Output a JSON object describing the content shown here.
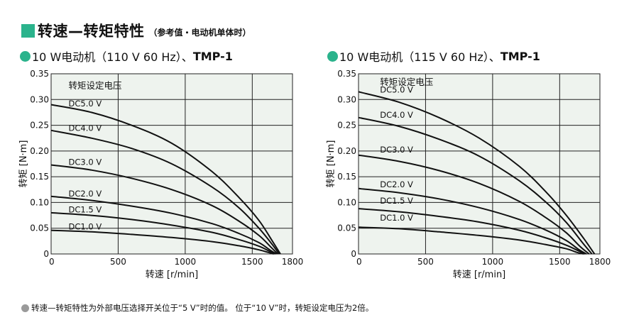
{
  "header": {
    "title": "转速—转矩特性",
    "subtitle": "（参考值・电动机单体时）"
  },
  "colors": {
    "accent": "#2bb38c",
    "plot_bg": "#eef3ee",
    "grid": "#222222",
    "curve": "#111111",
    "note_dot": "#9a9a9a"
  },
  "footnote": "转速—转矩特性为外部电压选择开关位于“5 V”时的值。 位于“10 V”时，转矩设定电压为2倍。",
  "chart_data": [
    {
      "type": "line",
      "title_prefix": "10 W电动机（110 V 60 Hz）、",
      "title_model": "TMP-1",
      "xlabel": "转速 [r/min]",
      "ylabel": "转矩 [N·m]",
      "xlim": [
        0,
        1800
      ],
      "ylim": [
        0,
        0.35
      ],
      "xticks": [
        "0",
        "500",
        "1000",
        "1500",
        "1800"
      ],
      "yticks": [
        "0",
        "0.05",
        "0.10",
        "0.15",
        "0.20",
        "0.25",
        "0.30",
        "0.35"
      ],
      "grid": true,
      "annotation": "转矩设定电压",
      "series": [
        {
          "name": "DC5.0 V",
          "x": [
            0,
            300,
            600,
            900,
            1200,
            1400,
            1550,
            1650,
            1710
          ],
          "y": [
            0.29,
            0.275,
            0.25,
            0.215,
            0.16,
            0.11,
            0.065,
            0.025,
            0
          ]
        },
        {
          "name": "DC4.0 V",
          "x": [
            0,
            300,
            600,
            900,
            1200,
            1400,
            1550,
            1650,
            1700
          ],
          "y": [
            0.24,
            0.225,
            0.205,
            0.175,
            0.13,
            0.09,
            0.05,
            0.018,
            0
          ]
        },
        {
          "name": "DC3.0 V",
          "x": [
            0,
            300,
            600,
            900,
            1200,
            1400,
            1550,
            1640,
            1690
          ],
          "y": [
            0.173,
            0.163,
            0.147,
            0.125,
            0.094,
            0.064,
            0.036,
            0.013,
            0
          ]
        },
        {
          "name": "DC2.0 V",
          "x": [
            0,
            300,
            600,
            900,
            1200,
            1400,
            1550,
            1630,
            1680
          ],
          "y": [
            0.112,
            0.104,
            0.093,
            0.079,
            0.059,
            0.04,
            0.022,
            0.008,
            0
          ]
        },
        {
          "name": "DC1.5 V",
          "x": [
            0,
            300,
            600,
            900,
            1200,
            1400,
            1550,
            1630,
            1670
          ],
          "y": [
            0.08,
            0.075,
            0.067,
            0.056,
            0.042,
            0.028,
            0.015,
            0.005,
            0
          ]
        },
        {
          "name": "DC1.0 V",
          "x": [
            0,
            300,
            600,
            900,
            1200,
            1400,
            1550,
            1620,
            1660
          ],
          "y": [
            0.046,
            0.043,
            0.038,
            0.032,
            0.024,
            0.016,
            0.008,
            0.003,
            0
          ]
        }
      ],
      "series_labels": [
        {
          "text": "DC5.0 V",
          "x": 130,
          "y": 0.284
        },
        {
          "text": "DC4.0 V",
          "x": 130,
          "y": 0.236
        },
        {
          "text": "DC3.0 V",
          "x": 130,
          "y": 0.17
        },
        {
          "text": "DC2.0 V",
          "x": 130,
          "y": 0.109
        },
        {
          "text": "DC1.5 V",
          "x": 130,
          "y": 0.078
        },
        {
          "text": "DC1.0 V",
          "x": 130,
          "y": 0.045
        }
      ],
      "annotation_pos": {
        "x": 130,
        "y": 0.328
      }
    },
    {
      "type": "line",
      "title_prefix": "10 W电动机（115 V 60 Hz）、",
      "title_model": "TMP-1",
      "xlabel": "转速 [r/min]",
      "ylabel": "转矩 [N·m]",
      "xlim": [
        0,
        1800
      ],
      "ylim": [
        0,
        0.35
      ],
      "xticks": [
        "0",
        "500",
        "1000",
        "1500",
        "1800"
      ],
      "yticks": [
        "0",
        "0.05",
        "0.10",
        "0.15",
        "0.20",
        "0.25",
        "0.30",
        "0.35"
      ],
      "grid": true,
      "annotation": "转矩设定电压",
      "series": [
        {
          "name": "DC5.0 V",
          "x": [
            0,
            300,
            600,
            900,
            1200,
            1400,
            1550,
            1680,
            1760
          ],
          "y": [
            0.315,
            0.295,
            0.265,
            0.225,
            0.17,
            0.12,
            0.075,
            0.03,
            0
          ]
        },
        {
          "name": "DC4.0 V",
          "x": [
            0,
            300,
            600,
            900,
            1200,
            1400,
            1550,
            1670,
            1740
          ],
          "y": [
            0.265,
            0.248,
            0.223,
            0.19,
            0.142,
            0.1,
            0.061,
            0.022,
            0
          ]
        },
        {
          "name": "DC3.0 V",
          "x": [
            0,
            300,
            600,
            900,
            1200,
            1400,
            1550,
            1650,
            1720
          ],
          "y": [
            0.192,
            0.18,
            0.162,
            0.137,
            0.102,
            0.07,
            0.041,
            0.015,
            0
          ]
        },
        {
          "name": "DC2.0 V",
          "x": [
            0,
            300,
            600,
            900,
            1200,
            1400,
            1550,
            1640,
            1700
          ],
          "y": [
            0.127,
            0.119,
            0.107,
            0.09,
            0.067,
            0.046,
            0.026,
            0.009,
            0
          ]
        },
        {
          "name": "DC1.5 V",
          "x": [
            0,
            300,
            600,
            900,
            1200,
            1400,
            1550,
            1640,
            1690
          ],
          "y": [
            0.088,
            0.082,
            0.073,
            0.062,
            0.046,
            0.031,
            0.017,
            0.006,
            0
          ]
        },
        {
          "name": "DC1.0 V",
          "x": [
            0,
            300,
            600,
            900,
            1200,
            1400,
            1550,
            1630,
            1680
          ],
          "y": [
            0.052,
            0.049,
            0.043,
            0.036,
            0.027,
            0.018,
            0.01,
            0.003,
            0
          ]
        }
      ],
      "series_labels": [
        {
          "text": "DC5.0 V",
          "x": 160,
          "y": 0.311
        },
        {
          "text": "DC4.0 V",
          "x": 160,
          "y": 0.262
        },
        {
          "text": "DC3.0 V",
          "x": 160,
          "y": 0.194
        },
        {
          "text": "DC2.0 V",
          "x": 160,
          "y": 0.127
        },
        {
          "text": "DC1.5 V",
          "x": 160,
          "y": 0.095
        },
        {
          "text": "DC1.0 V",
          "x": 160,
          "y": 0.062
        }
      ],
      "annotation_pos": {
        "x": 160,
        "y": 0.335
      }
    }
  ]
}
